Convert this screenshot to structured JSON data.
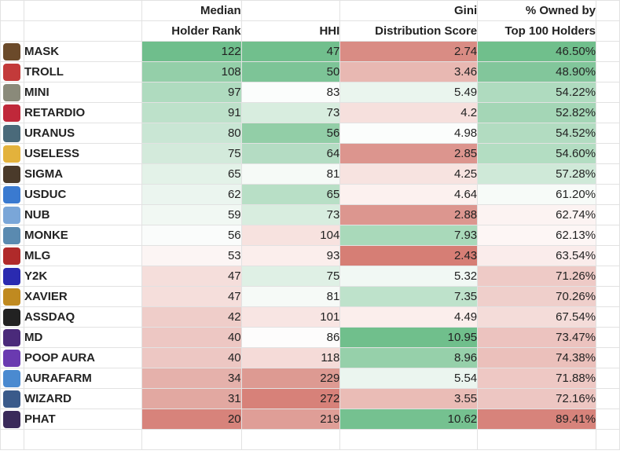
{
  "headers": {
    "median_line1": "Median",
    "median_line2": "Holder Rank",
    "hhi_line1": "",
    "hhi_line2": "HHI",
    "gini_line1": "Gini",
    "gini_line2": "Distribution Score",
    "owned_line1": "% Owned by",
    "owned_line2": "Top 100 Holders"
  },
  "rows": [
    {
      "name": "MASK",
      "rank": "122",
      "hhi": "47",
      "gini": "2.74",
      "owned": "46.50%",
      "icon": "mask-icon",
      "icon_color": "#6b4a2a",
      "c_rank": "#6fbe8c",
      "c_hhi": "#71bf8d",
      "c_gini": "#d98c84",
      "c_owned": "#70bf8c"
    },
    {
      "name": "TROLL",
      "rank": "108",
      "hhi": "50",
      "gini": "3.46",
      "owned": "48.90%",
      "icon": "troll-icon",
      "icon_color": "#c33a3a",
      "c_rank": "#94cfa9",
      "c_hhi": "#7dc497",
      "c_gini": "#e8b8b2",
      "c_owned": "#82c69b"
    },
    {
      "name": "MINI",
      "rank": "97",
      "hhi": "83",
      "gini": "5.49",
      "owned": "54.22%",
      "icon": "mini-icon",
      "icon_color": "#8a8a7a",
      "c_rank": "#afdbbf",
      "c_hhi": "#fbfdfc",
      "c_gini": "#eaf5ee",
      "c_owned": "#afdbbf"
    },
    {
      "name": "RETARDIO",
      "rank": "91",
      "hhi": "73",
      "gini": "4.2",
      "owned": "52.82%",
      "icon": "retardio-icon",
      "icon_color": "#c0283a",
      "c_rank": "#bde1ca",
      "c_hhi": "#d8eddf",
      "c_gini": "#f6e0dd",
      "c_owned": "#a4d6b6"
    },
    {
      "name": "URANUS",
      "rank": "80",
      "hhi": "56",
      "gini": "4.98",
      "owned": "54.52%",
      "icon": "uranus-icon",
      "icon_color": "#4a6a7a",
      "c_rank": "#c9e6d4",
      "c_hhi": "#92cea7",
      "c_gini": "#fbfdfc",
      "c_owned": "#b2dcc1"
    },
    {
      "name": "USELESS",
      "rank": "75",
      "hhi": "64",
      "gini": "2.85",
      "owned": "54.60%",
      "icon": "useless-icon",
      "icon_color": "#e3b23c",
      "c_rank": "#d3eadb",
      "c_hhi": "#b4dcc3",
      "c_gini": "#dc958e",
      "c_owned": "#b3ddc2"
    },
    {
      "name": "SIGMA",
      "rank": "65",
      "hhi": "81",
      "gini": "4.25",
      "owned": "57.28%",
      "icon": "sigma-icon",
      "icon_color": "#4a3a2a",
      "c_rank": "#e3f2e8",
      "c_hhi": "#f6faf7",
      "c_gini": "#f7e3e0",
      "c_owned": "#cfe9d8"
    },
    {
      "name": "USDUC",
      "rank": "62",
      "hhi": "65",
      "gini": "4.64",
      "owned": "61.20%",
      "icon": "usduc-icon",
      "icon_color": "#3a7ad0",
      "c_rank": "#ebf5ef",
      "c_hhi": "#b8dfc6",
      "c_gini": "#fcf1ef",
      "c_owned": "#f7fbf8"
    },
    {
      "name": "NUB",
      "rank": "59",
      "hhi": "73",
      "gini": "2.88",
      "owned": "62.74%",
      "icon": "nub-icon",
      "icon_color": "#7aa6d8",
      "c_rank": "#f1f8f3",
      "c_hhi": "#d8eddf",
      "c_gini": "#dc968f",
      "c_owned": "#fcf3f2"
    },
    {
      "name": "MONKE",
      "rank": "56",
      "hhi": "104",
      "gini": "7.93",
      "owned": "62.13%",
      "icon": "monke-icon",
      "icon_color": "#5a8ab0",
      "c_rank": "#fafcfb",
      "c_hhi": "#f7e2df",
      "c_gini": "#a9d9ba",
      "c_owned": "#fdf6f5"
    },
    {
      "name": "MLG",
      "rank": "53",
      "hhi": "93",
      "gini": "2.43",
      "owned": "63.54%",
      "icon": "mlg-icon",
      "icon_color": "#b02a2a",
      "c_rank": "#fcf5f4",
      "c_hhi": "#fbeeec",
      "c_gini": "#d67e75",
      "c_owned": "#faeceb"
    },
    {
      "name": "Y2K",
      "rank": "47",
      "hhi": "75",
      "gini": "5.32",
      "owned": "71.26%",
      "icon": "y2k-icon",
      "icon_color": "#2a2ab0",
      "c_rank": "#f5dedb",
      "c_hhi": "#dff0e5",
      "c_gini": "#f1f8f4",
      "c_owned": "#eecac6"
    },
    {
      "name": "XAVIER",
      "rank": "47",
      "hhi": "81",
      "gini": "7.35",
      "owned": "70.26%",
      "icon": "xavier-icon",
      "icon_color": "#c08a20",
      "c_rank": "#f5dedb",
      "c_hhi": "#f6faf7",
      "c_gini": "#bee2cb",
      "c_owned": "#efcfcb"
    },
    {
      "name": "ASSDAQ",
      "rank": "42",
      "hhi": "101",
      "gini": "4.49",
      "owned": "67.54%",
      "icon": "assdaq-icon",
      "icon_color": "#222222",
      "c_rank": "#efcdc9",
      "c_hhi": "#f8e5e3",
      "c_gini": "#fbeeec",
      "c_owned": "#f4dcd9"
    },
    {
      "name": "MD",
      "rank": "40",
      "hhi": "86",
      "gini": "10.95",
      "owned": "73.47%",
      "icon": "md-icon",
      "icon_color": "#4a2a7a",
      "c_rank": "#edc7c3",
      "c_hhi": "#fdfcfc",
      "c_gini": "#70bf8c",
      "c_owned": "#ecc3bf"
    },
    {
      "name": "POOP AURA",
      "rank": "40",
      "hhi": "118",
      "gini": "8.96",
      "owned": "74.38%",
      "icon": "poop-aura-icon",
      "icon_color": "#6a3ab0",
      "c_rank": "#edc7c3",
      "c_hhi": "#f5dbd8",
      "c_gini": "#96d0aa",
      "c_owned": "#ebc0bb"
    },
    {
      "name": "AURAFARM",
      "rank": "34",
      "hhi": "229",
      "gini": "5.54",
      "owned": "71.88%",
      "icon": "aurafarm-icon",
      "icon_color": "#4a8ad0",
      "c_rank": "#e5b1ab",
      "c_hhi": "#dd9a92",
      "c_gini": "#ebf5ef",
      "c_owned": "#eec8c4"
    },
    {
      "name": "WIZARD",
      "rank": "31",
      "hhi": "272",
      "gini": "3.55",
      "owned": "72.16%",
      "icon": "wizard-icon",
      "icon_color": "#3a5a8a",
      "c_rank": "#e2a8a1",
      "c_hhi": "#d78179",
      "c_gini": "#eabcb6",
      "c_owned": "#edc6c2"
    },
    {
      "name": "PHAT",
      "rank": "20",
      "hhi": "219",
      "gini": "10.62",
      "owned": "89.41%",
      "icon": "phat-icon",
      "icon_color": "#3a2a5a",
      "c_rank": "#d7837b",
      "c_hhi": "#df9e97",
      "c_gini": "#75c190",
      "c_owned": "#d7837b"
    }
  ]
}
